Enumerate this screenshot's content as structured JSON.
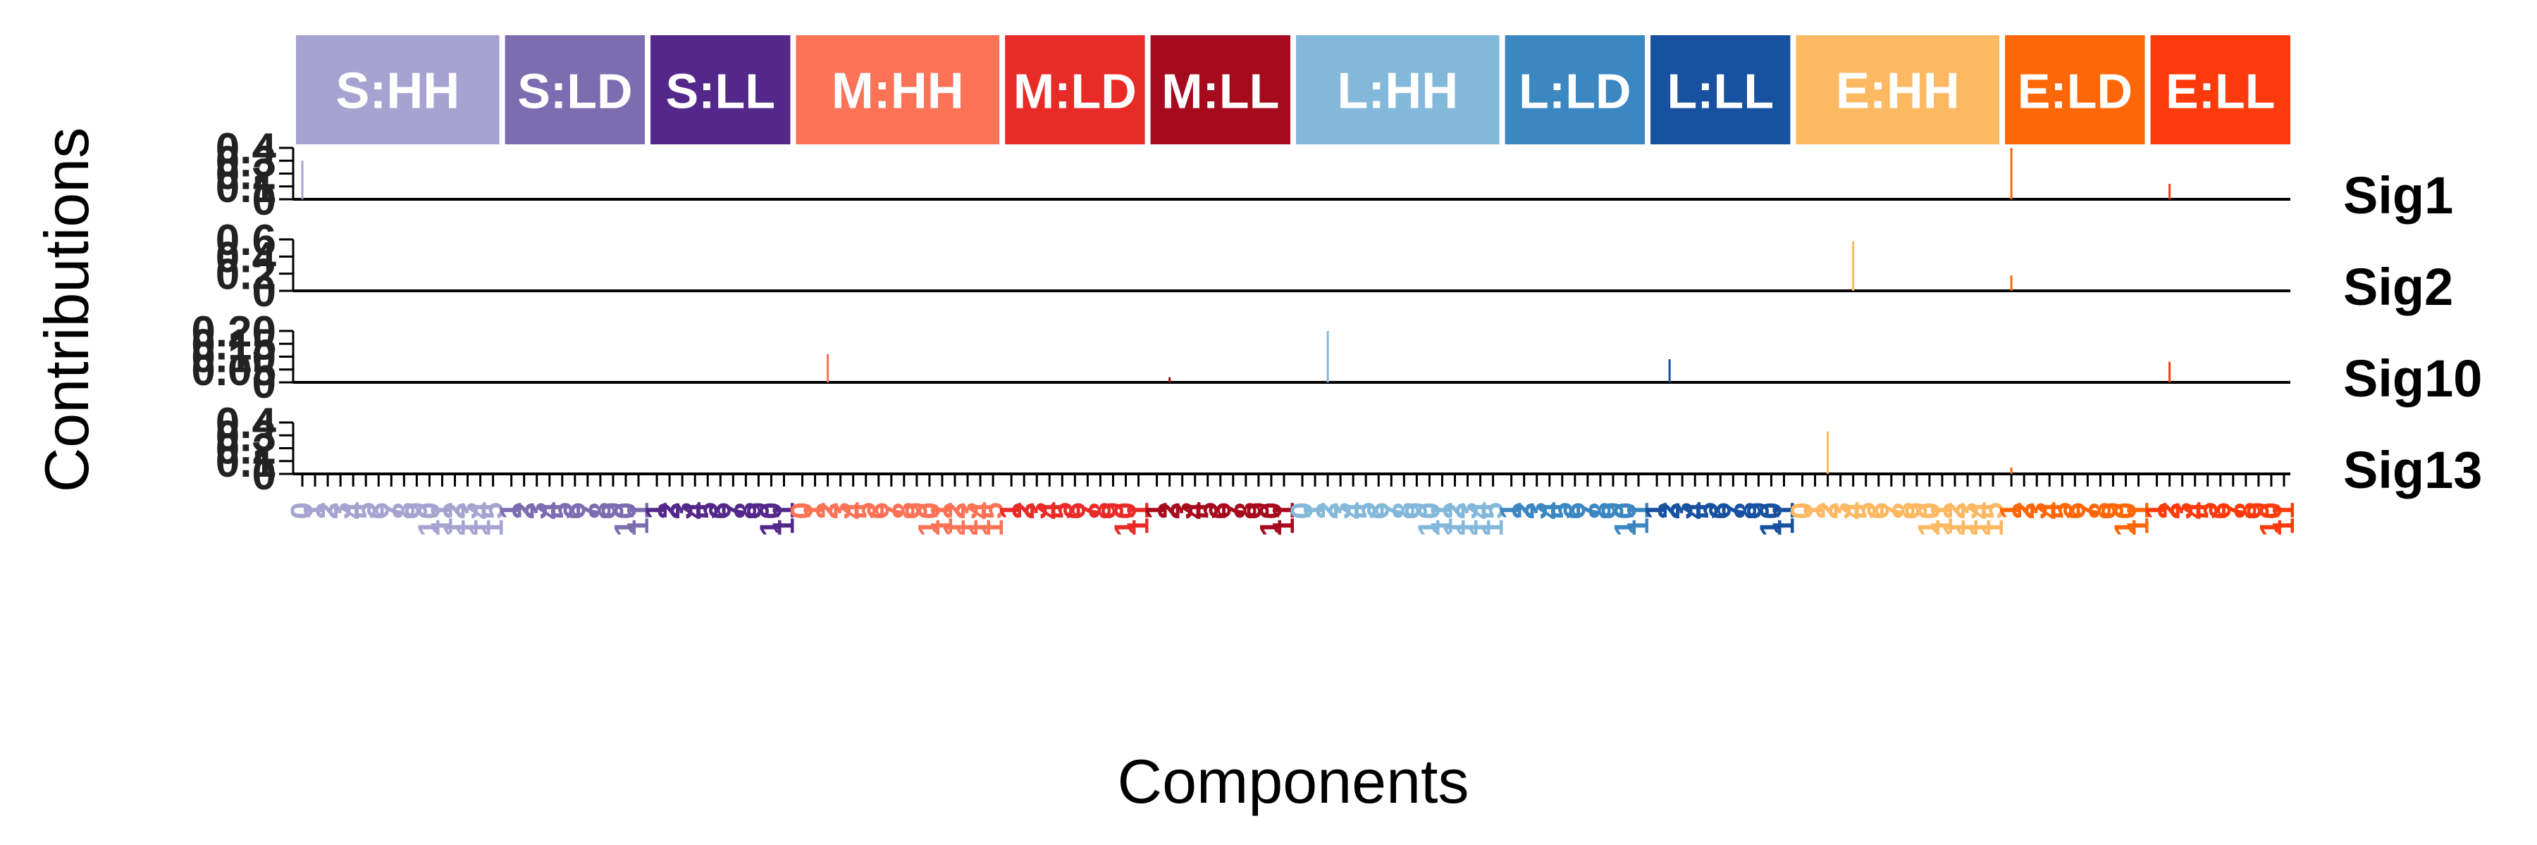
{
  "chart_data": {
    "type": "bar",
    "xlabel": "Components",
    "ylabel": "Contributions",
    "groups": [
      {
        "name": "S:HH",
        "color": "#A6A3D0",
        "n": 16
      },
      {
        "name": "S:LD",
        "color": "#7C6DB1",
        "n": 11
      },
      {
        "name": "S:LL",
        "color": "#54288A",
        "n": 11
      },
      {
        "name": "M:HH",
        "color": "#FC7256",
        "n": 16
      },
      {
        "name": "M:LD",
        "color": "#E92B28",
        "n": 11
      },
      {
        "name": "M:LL",
        "color": "#A60A1D",
        "n": 11
      },
      {
        "name": "L:HH",
        "color": "#84B8DA",
        "n": 16
      },
      {
        "name": "L:LD",
        "color": "#3B87C2",
        "n": 11
      },
      {
        "name": "L:LL",
        "color": "#1751A0",
        "n": 11
      },
      {
        "name": "E:HH",
        "color": "#FDB862",
        "n": 16
      },
      {
        "name": "E:LD",
        "color": "#FE6707",
        "n": 11
      },
      {
        "name": "E:LL",
        "color": "#FD3A0B",
        "n": 11
      }
    ],
    "component_labels": {
      "HH": [
        "0",
        "1",
        "2",
        "3",
        "4",
        "5",
        "6",
        "7",
        "8",
        "9",
        "10",
        "11",
        "12",
        "13",
        "14",
        "15"
      ],
      "LD": [
        "1",
        "2",
        "3",
        "4",
        "5",
        "6",
        "7",
        "8",
        "9",
        "10",
        "11"
      ],
      "LL": [
        "1",
        "2",
        "3",
        "4",
        "5",
        "6",
        "7",
        "8",
        "9",
        "10",
        "11"
      ]
    },
    "panels": [
      {
        "name": "Sig1",
        "ylim": [
          0,
          0.4
        ],
        "yticks": [
          "0",
          "0.1",
          "0.2",
          "0.3",
          "0.4"
        ],
        "bars": [
          {
            "group": "S:HH",
            "index": 0,
            "value": 0.3
          },
          {
            "group": "E:LD",
            "index": 0,
            "value": 0.4
          },
          {
            "group": "E:LL",
            "index": 1,
            "value": 0.12
          }
        ]
      },
      {
        "name": "Sig2",
        "ylim": [
          0,
          0.6
        ],
        "yticks": [
          "0",
          "0.2",
          "0.4",
          "0.6"
        ],
        "bars": [
          {
            "group": "E:HH",
            "index": 4,
            "value": 0.58
          },
          {
            "group": "E:LD",
            "index": 0,
            "value": 0.18
          }
        ]
      },
      {
        "name": "Sig10",
        "ylim": [
          0,
          0.2
        ],
        "yticks": [
          "0",
          "0.05",
          "0.10",
          "0.15",
          "0.20"
        ],
        "bars": [
          {
            "group": "M:HH",
            "index": 2,
            "value": 0.11
          },
          {
            "group": "M:LL",
            "index": 1,
            "value": 0.02
          },
          {
            "group": "L:HH",
            "index": 2,
            "value": 0.2
          },
          {
            "group": "L:LL",
            "index": 1,
            "value": 0.09
          },
          {
            "group": "E:LL",
            "index": 1,
            "value": 0.08
          }
        ]
      },
      {
        "name": "Sig13",
        "ylim": [
          0,
          0.4
        ],
        "yticks": [
          "0",
          "0.1",
          "0.2",
          "0.3",
          "0.4"
        ],
        "bars": [
          {
            "group": "E:HH",
            "index": 2,
            "value": 0.33
          },
          {
            "group": "E:LD",
            "index": 0,
            "value": 0.05
          }
        ]
      }
    ]
  }
}
